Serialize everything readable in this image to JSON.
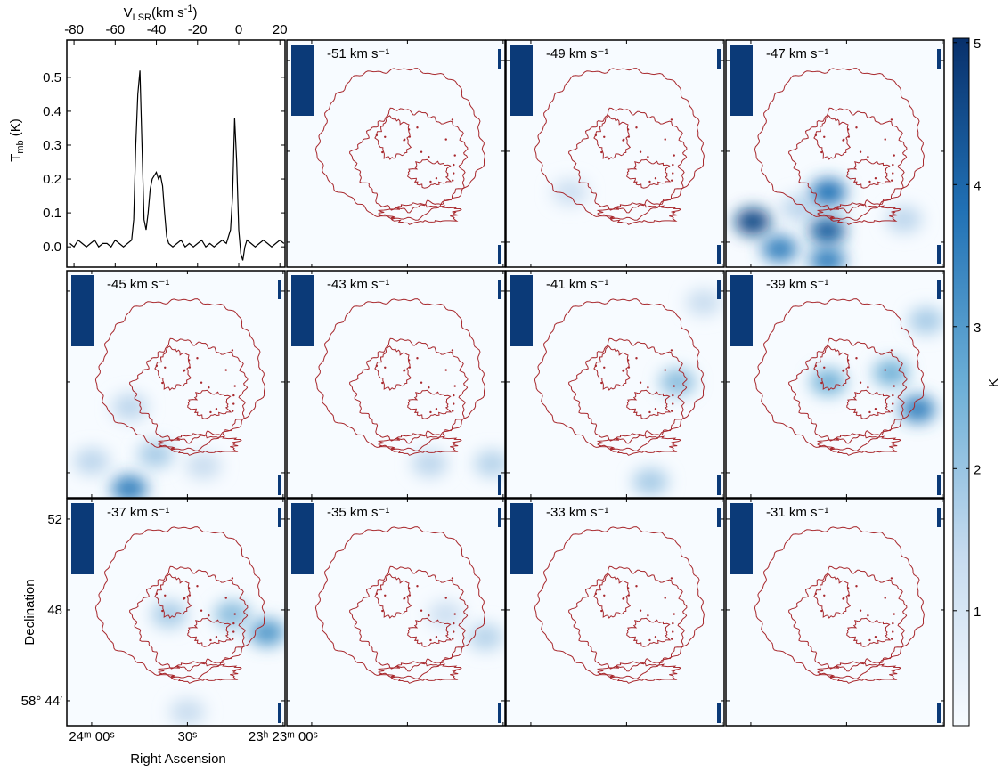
{
  "chart_data": [
    {
      "type": "line",
      "x_label": {
        "main": "V",
        "sub": "LSR",
        "rest": "(km s",
        "sup": "-1",
        "end": ")"
      },
      "y_label": {
        "main": "T",
        "sub": "mb",
        "rest": " (K)"
      },
      "color": "#000000",
      "xlim": [
        -83.5,
        22.5
      ],
      "ylim": [
        -0.06,
        0.61
      ],
      "xticks": [
        -80,
        -60,
        -40,
        -20,
        0,
        20
      ],
      "yticks": [
        {
          "value": 0,
          "label": "0.0"
        },
        0.1,
        0.2,
        0.3,
        0.4,
        0.5
      ],
      "x": [
        -82,
        -80,
        -78,
        -76,
        -74,
        -72,
        -70,
        -68,
        -66,
        -64,
        -62,
        -60,
        -58,
        -56,
        -54,
        -52,
        -51,
        -50,
        -49,
        -48,
        -47,
        -46,
        -45,
        -44,
        -43,
        -42,
        -41,
        -40,
        -39,
        -38,
        -37,
        -36,
        -35,
        -34,
        -32,
        -30,
        -28,
        -26,
        -24,
        -22,
        -20,
        -18,
        -16,
        -14,
        -12,
        -10,
        -8,
        -6,
        -4,
        -3,
        -2,
        -1,
        0,
        1,
        2,
        3,
        4,
        6,
        8,
        10,
        12,
        14,
        16,
        18,
        20,
        22
      ],
      "values": [
        0.01,
        0.0,
        0.02,
        0.01,
        0.0,
        0.01,
        0.02,
        0.0,
        0.01,
        0.01,
        0.0,
        0.02,
        0.01,
        0.0,
        0.01,
        0.02,
        0.08,
        0.3,
        0.45,
        0.52,
        0.3,
        0.08,
        0.05,
        0.1,
        0.17,
        0.2,
        0.21,
        0.22,
        0.2,
        0.21,
        0.18,
        0.1,
        0.03,
        0.01,
        0.0,
        0.01,
        0.02,
        0.0,
        0.01,
        0.0,
        0.01,
        0.02,
        0.0,
        0.01,
        0.0,
        0.01,
        0.02,
        0.01,
        0.05,
        0.15,
        0.38,
        0.25,
        0.05,
        -0.02,
        -0.04,
        0.0,
        0.02,
        0.01,
        0.0,
        0.01,
        0.02,
        0.01,
        0.0,
        0.01,
        0.02,
        0.01
      ]
    },
    {
      "type": "channel-maps",
      "x_label": "Right Ascension",
      "y_label": "Declination",
      "xlim": [
        67.8,
        -0.6
      ],
      "ylim": [
        42.9,
        52.9
      ],
      "xticks": [
        {
          "value": 60,
          "label": "24ᵐ 00ˢ"
        },
        {
          "value": 30,
          "label": "30ˢ"
        },
        {
          "value": 0,
          "label": "23ʰ 23ᵐ 00ˢ"
        }
      ],
      "yticks": [
        52,
        48,
        {
          "value": 44,
          "label": "58° 44′"
        }
      ],
      "contour_color": "#a8282d",
      "colorbar": {
        "label": "K",
        "clim": [
          0.19,
          5.03
        ],
        "ticks": [
          1,
          2,
          3,
          4,
          5
        ],
        "colors": [
          "#f7fbff",
          "#c6dbef",
          "#6baed6",
          "#2171b5",
          "#08306b"
        ]
      },
      "channels": [
        {
          "title": "-51 km s⁻¹",
          "emission": []
        },
        {
          "title": "-49 km s⁻¹",
          "emission": [
            {
              "ra": 47.7,
              "dec": 46.2,
              "K": 1.2
            }
          ]
        },
        {
          "title": "-47 km s⁻¹",
          "emission": [
            {
              "ra": 59.4,
              "dec": 44.9,
              "K": 4.6
            },
            {
              "ra": 51,
              "dec": 43.7,
              "K": 3.5
            },
            {
              "ra": 45,
              "dec": 45.5,
              "K": 1.5
            },
            {
              "ra": 35.7,
              "dec": 46.2,
              "K": 3.8
            },
            {
              "ra": 36,
              "dec": 44.5,
              "K": 4.2
            },
            {
              "ra": 36,
              "dec": 43.2,
              "K": 3.5
            },
            {
              "ra": 12,
              "dec": 45,
              "K": 1.5
            }
          ]
        },
        {
          "title": "-45 km s⁻¹",
          "emission": [
            {
              "ra": 48.2,
              "dec": 43.3,
              "K": 3.5
            },
            {
              "ra": 60,
              "dec": 44.5,
              "K": 1.5
            },
            {
              "ra": 40,
              "dec": 44.8,
              "K": 1.8
            },
            {
              "ra": 25,
              "dec": 44.3,
              "K": 1.3
            },
            {
              "ra": 48,
              "dec": 46.9,
              "K": 1.5
            }
          ]
        },
        {
          "title": "-43 km s⁻¹",
          "emission": [
            {
              "ra": 23,
              "dec": 44.4,
              "K": 1.5
            },
            {
              "ra": 3.5,
              "dec": 44.4,
              "K": 1.6
            }
          ]
        },
        {
          "title": "-41 km s⁻¹",
          "emission": [
            {
              "ra": 14,
              "dec": 48,
              "K": 2.2
            },
            {
              "ra": 22.5,
              "dec": 43.6,
              "K": 1.8
            },
            {
              "ra": 5.8,
              "dec": 51.5,
              "K": 1.3
            }
          ]
        },
        {
          "title": "-39 km s⁻¹",
          "emission": [
            {
              "ra": 7.7,
              "dec": 46.8,
              "K": 3.5
            },
            {
              "ra": 16,
              "dec": 48.4,
              "K": 2.5
            },
            {
              "ra": 35.7,
              "dec": 48,
              "K": 2.5
            },
            {
              "ra": 5,
              "dec": 50.7,
              "K": 1.8
            }
          ]
        },
        {
          "title": "-37 km s⁻¹",
          "emission": [
            {
              "ra": 5,
              "dec": 47,
              "K": 3.0
            },
            {
              "ra": 16,
              "dec": 47.8,
              "K": 2.2
            },
            {
              "ra": 35.7,
              "dec": 47.8,
              "K": 1.8
            },
            {
              "ra": 30,
              "dec": 43.5,
              "K": 1.3
            }
          ]
        },
        {
          "title": "-35 km s⁻¹",
          "emission": [
            {
              "ra": 5.5,
              "dec": 46.8,
              "K": 1.6
            },
            {
              "ra": 18,
              "dec": 47.8,
              "K": 1.2
            }
          ]
        },
        {
          "title": "-33 km s⁻¹",
          "emission": []
        },
        {
          "title": "-31 km s⁻¹",
          "emission": []
        }
      ]
    }
  ]
}
